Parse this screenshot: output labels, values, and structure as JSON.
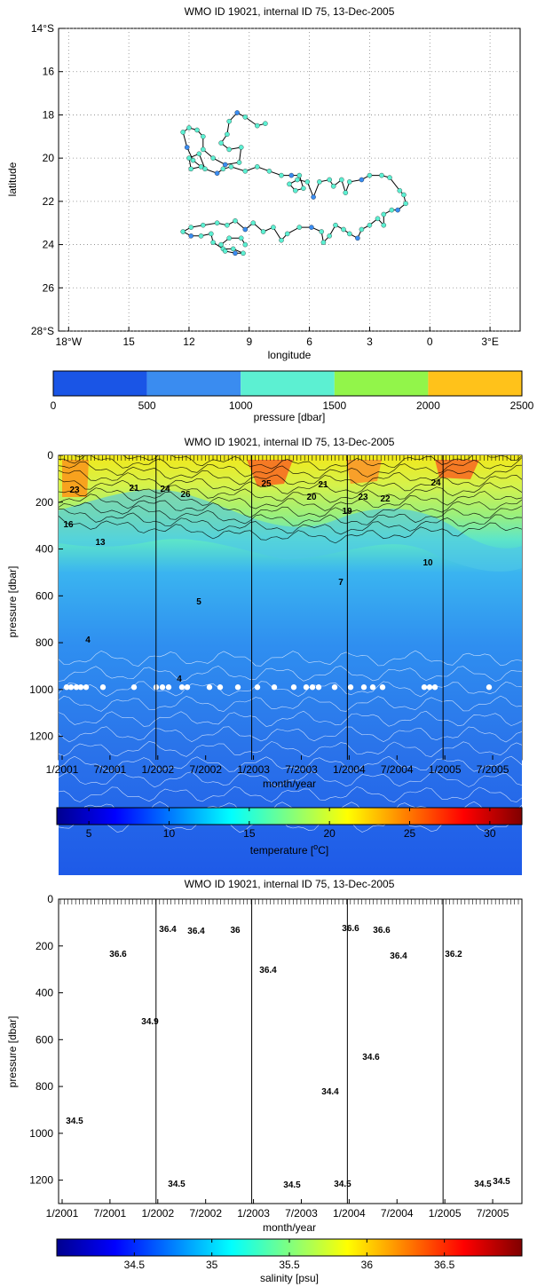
{
  "title": "WMO ID 19021, internal ID 75, 13-Dec-2005",
  "chart_data": [
    {
      "type": "scatter",
      "title": "WMO ID 19021, internal ID 75, 13-Dec-2005",
      "xlabel": "longitude",
      "ylabel": "latitude",
      "xlim": [
        -18.5,
        4.5
      ],
      "ylim": [
        -28,
        -14
      ],
      "xticks": [
        -18,
        -15,
        -12,
        -9,
        -6,
        -3,
        0,
        3
      ],
      "xtick_labels": [
        "18°W",
        "15",
        "12",
        "9",
        "6",
        "3",
        "0",
        "3°E"
      ],
      "yticks": [
        -14,
        -16,
        -18,
        -20,
        -22,
        -24,
        -26,
        -28
      ],
      "ytick_labels": [
        "14°S",
        "16",
        "18",
        "20",
        "22",
        "24",
        "26",
        "28°S"
      ],
      "grid": true,
      "track_color": "#000000",
      "track": [
        [
          -8.2,
          -18.4
        ],
        [
          -8.6,
          -18.5
        ],
        [
          -9.2,
          -18.1
        ],
        [
          -9.6,
          -17.9
        ],
        [
          -10.0,
          -18.3
        ],
        [
          -10.1,
          -18.9
        ],
        [
          -10.4,
          -19.3
        ],
        [
          -10.0,
          -19.6
        ],
        [
          -9.4,
          -19.5
        ],
        [
          -9.5,
          -20.2
        ],
        [
          -10.2,
          -20.3
        ],
        [
          -10.8,
          -20.0
        ],
        [
          -11.3,
          -19.6
        ],
        [
          -11.3,
          -19.0
        ],
        [
          -11.6,
          -18.7
        ],
        [
          -12.0,
          -18.6
        ],
        [
          -12.3,
          -18.8
        ],
        [
          -12.1,
          -19.5
        ],
        [
          -11.8,
          -20.1
        ],
        [
          -11.4,
          -20.4
        ],
        [
          -11.9,
          -20.5
        ],
        [
          -12.0,
          -20.0
        ],
        [
          -11.5,
          -19.8
        ],
        [
          -11.2,
          -20.5
        ],
        [
          -10.6,
          -20.7
        ],
        [
          -10.3,
          -20.5
        ],
        [
          -9.9,
          -20.4
        ],
        [
          -9.2,
          -20.6
        ],
        [
          -8.6,
          -20.4
        ],
        [
          -8.0,
          -20.6
        ],
        [
          -7.4,
          -20.8
        ],
        [
          -6.9,
          -20.8
        ],
        [
          -6.5,
          -20.8
        ],
        [
          -6.3,
          -21.4
        ],
        [
          -6.7,
          -21.5
        ],
        [
          -7.0,
          -21.2
        ],
        [
          -6.6,
          -21.0
        ],
        [
          -6.1,
          -21.1
        ],
        [
          -5.8,
          -21.8
        ],
        [
          -5.5,
          -21.1
        ],
        [
          -5.0,
          -21.0
        ],
        [
          -4.8,
          -21.3
        ],
        [
          -4.4,
          -21.0
        ],
        [
          -4.2,
          -21.6
        ],
        [
          -4.0,
          -21.1
        ],
        [
          -3.4,
          -21.0
        ],
        [
          -3.0,
          -20.8
        ],
        [
          -2.4,
          -20.8
        ],
        [
          -2.0,
          -20.9
        ],
        [
          -1.5,
          -21.5
        ],
        [
          -1.3,
          -21.7
        ],
        [
          -1.2,
          -22.1
        ],
        [
          -1.6,
          -22.4
        ],
        [
          -1.9,
          -22.4
        ],
        [
          -2.3,
          -22.6
        ],
        [
          -2.3,
          -23.1
        ],
        [
          -2.6,
          -22.8
        ],
        [
          -3.0,
          -23.1
        ],
        [
          -3.4,
          -23.3
        ],
        [
          -3.6,
          -23.7
        ],
        [
          -4.0,
          -23.5
        ],
        [
          -4.3,
          -23.3
        ],
        [
          -4.7,
          -23.1
        ],
        [
          -5.0,
          -23.6
        ],
        [
          -5.3,
          -23.9
        ],
        [
          -5.4,
          -23.4
        ],
        [
          -5.9,
          -23.2
        ],
        [
          -6.5,
          -23.2
        ],
        [
          -7.1,
          -23.5
        ],
        [
          -7.4,
          -23.8
        ],
        [
          -7.8,
          -23.2
        ],
        [
          -8.3,
          -23.4
        ],
        [
          -8.8,
          -23.0
        ],
        [
          -9.2,
          -23.3
        ],
        [
          -9.7,
          -22.9
        ],
        [
          -10.1,
          -23.1
        ],
        [
          -10.6,
          -23.0
        ],
        [
          -11.3,
          -23.1
        ],
        [
          -11.9,
          -23.2
        ],
        [
          -12.3,
          -23.4
        ],
        [
          -11.9,
          -23.6
        ],
        [
          -11.4,
          -23.6
        ],
        [
          -10.9,
          -23.5
        ],
        [
          -10.8,
          -23.9
        ],
        [
          -10.3,
          -24.2
        ],
        [
          -9.8,
          -24.2
        ],
        [
          -9.3,
          -24.4
        ],
        [
          -9.7,
          -24.4
        ],
        [
          -10.2,
          -24.3
        ],
        [
          -10.4,
          -24.0
        ],
        [
          -10.0,
          -23.7
        ],
        [
          -9.4,
          -23.7
        ],
        [
          -9.2,
          -24.0
        ]
      ],
      "colorbar": {
        "label": "pressure [dbar]",
        "ticks": [
          "0",
          "500",
          "1000",
          "1500",
          "2000",
          "2500"
        ],
        "colors": [
          "#1a55e6",
          "#3a8cf0",
          "#5cf0d2",
          "#92f54a",
          "#ffc21a"
        ]
      }
    },
    {
      "type": "heatmap",
      "title": "WMO ID 19021, internal ID 75, 13-Dec-2005",
      "xlabel": "month/year",
      "ylabel": "pressure [dbar]",
      "xtick_labels": [
        "1/2001",
        "7/2001",
        "1/2002",
        "7/2002",
        "1/2003",
        "7/2003",
        "1/2004",
        "7/2004",
        "1/2005",
        "7/2005"
      ],
      "yticks": [
        0,
        200,
        400,
        600,
        800,
        1000,
        1200
      ],
      "ylim": [
        0,
        1300
      ],
      "year_lines": [
        "1/2002",
        "1/2003",
        "1/2004",
        "1/2005"
      ],
      "contour_labels": [
        "23",
        "21",
        "24",
        "26",
        "25",
        "21",
        "20",
        "23",
        "19",
        "22",
        "24",
        "16",
        "13",
        "10",
        "7",
        "5",
        "4",
        "4"
      ],
      "colorbar": {
        "label": "temperature [oC]",
        "label_main": "temperature [",
        "label_sup": "o",
        "label_tail": "C]",
        "ticks": [
          "5",
          "10",
          "15",
          "20",
          "25",
          "30"
        ],
        "range": [
          3,
          32
        ]
      }
    },
    {
      "type": "heatmap",
      "title": "WMO ID 19021, internal ID 75, 13-Dec-2005",
      "xlabel": "month/year",
      "ylabel": "pressure [dbar]",
      "xtick_labels": [
        "1/2001",
        "7/2001",
        "1/2002",
        "7/2002",
        "1/2003",
        "7/2003",
        "1/2004",
        "7/2004",
        "1/2005",
        "7/2005"
      ],
      "yticks": [
        0,
        200,
        400,
        600,
        800,
        1000,
        1200
      ],
      "ylim": [
        0,
        1300
      ],
      "year_lines": [
        "1/2002",
        "1/2003",
        "1/2004",
        "1/2005"
      ],
      "contour_labels": [
        "36.6",
        "36.4",
        "36.4",
        "36",
        "36.6",
        "36.6",
        "36.4",
        "36.2",
        "36.4",
        "34.9",
        "34.6",
        "34.4",
        "34.5",
        "34.5",
        "34.5",
        "34.5",
        "34.5",
        "34.5"
      ],
      "colorbar": {
        "label": "salinity [psu]",
        "ticks": [
          "34.5",
          "35",
          "35.5",
          "36",
          "36.5"
        ],
        "range": [
          34.0,
          37.0
        ]
      }
    }
  ]
}
